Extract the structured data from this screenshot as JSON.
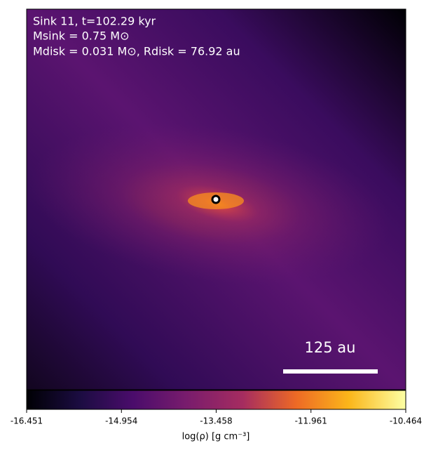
{
  "chart_data": {
    "type": "density-map",
    "annotations": [
      "Sink 11, t=102.29 kyr",
      "Msink = 0.75 M⊙",
      "Mdisk = 0.031 M⊙, Rdisk = 76.92 au"
    ],
    "scale_bar_label": "125 au",
    "colorbar": {
      "label": "log(ρ) [g cm⁻³]",
      "xlim": [
        -16.451,
        -10.464
      ],
      "xticks": [
        -16.451,
        -14.954,
        -13.458,
        -11.961,
        -10.464
      ]
    }
  }
}
